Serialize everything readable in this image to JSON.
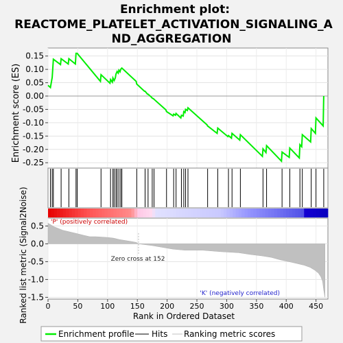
{
  "chart_data": {
    "type": "line",
    "title_lines": [
      "Enrichment plot:",
      "REACTOME_PLATELET_ACTIVATION_SIGNALING_A",
      "ND_AGGREGATION"
    ],
    "ylabel_top": "Enrichment score (ES)",
    "ylabel_bottom": "Ranked list metric (Signal2Noise)",
    "xlabel": "Rank in Ordered Dataset",
    "xlim": [
      0,
      470
    ],
    "es_ylim": [
      -0.27,
      0.18
    ],
    "metric_ylim": [
      -1.55,
      0.72
    ],
    "x_ticks": [
      0,
      50,
      100,
      150,
      200,
      250,
      300,
      350,
      400,
      450
    ],
    "es_ticks": [
      "0.15",
      "0.10",
      "0.05",
      "0.00",
      "-0.05",
      "-0.10",
      "-0.15",
      "-0.20",
      "-0.25"
    ],
    "es_tick_values": [
      0.15,
      0.1,
      0.05,
      0.0,
      -0.05,
      -0.1,
      -0.15,
      -0.2,
      -0.25
    ],
    "metric_ticks": [
      "0.5",
      "0.0",
      "-0.5",
      "-1.0",
      "-1.5"
    ],
    "metric_tick_values": [
      0.5,
      0.0,
      -0.5,
      -1.0,
      -1.5
    ],
    "zero_cross_label": "Zero cross at 152",
    "zero_cross": 152,
    "pos_label": "'P' (positively correlated)",
    "neg_label": "'K' (negatively correlated)",
    "legend": [
      "Enrichment profile",
      "Hits",
      "Ranking metric scores"
    ],
    "colors": {
      "es_line": "#00ee00",
      "hit": "#000000",
      "metric_fill": "#c0c0c0",
      "pos_text": "#cc0000",
      "neg_text": "#2222cc"
    },
    "hits": [
      4,
      7,
      9,
      22,
      35,
      47,
      49,
      89,
      105,
      109,
      111,
      114,
      116,
      119,
      122,
      124,
      149,
      163,
      168,
      175,
      178,
      199,
      211,
      215,
      224,
      228,
      231,
      235,
      268,
      285,
      303,
      309,
      323,
      361,
      367,
      393,
      406,
      423,
      427,
      442,
      450,
      463
    ],
    "es_x": [
      0,
      4,
      7,
      9,
      21,
      22,
      34,
      35,
      46,
      47,
      49,
      88,
      89,
      104,
      105,
      108,
      109,
      111,
      113,
      114,
      116,
      118,
      119,
      121,
      122,
      124,
      148,
      149,
      162,
      163,
      167,
      168,
      174,
      175,
      177,
      178,
      198,
      199,
      210,
      211,
      214,
      215,
      223,
      224,
      227,
      228,
      230,
      231,
      234,
      235,
      267,
      268,
      284,
      285,
      302,
      303,
      308,
      309,
      322,
      323,
      360,
      361,
      366,
      367,
      392,
      393,
      405,
      406,
      422,
      423,
      426,
      427,
      441,
      442,
      449,
      450,
      462,
      463
    ],
    "es_y": [
      0.04,
      0.032,
      0.07,
      0.138,
      0.118,
      0.14,
      0.12,
      0.14,
      0.12,
      0.16,
      0.16,
      0.055,
      0.08,
      0.048,
      0.062,
      0.052,
      0.068,
      0.058,
      0.068,
      0.082,
      0.092,
      0.086,
      0.097,
      0.091,
      0.1,
      0.105,
      0.055,
      0.045,
      0.018,
      0.018,
      0.007,
      0.007,
      -0.005,
      -0.008,
      -0.01,
      -0.012,
      -0.052,
      -0.058,
      -0.074,
      -0.068,
      -0.072,
      -0.065,
      -0.082,
      -0.072,
      -0.075,
      -0.058,
      -0.062,
      -0.05,
      -0.054,
      -0.044,
      -0.108,
      -0.112,
      -0.14,
      -0.12,
      -0.152,
      -0.148,
      -0.158,
      -0.14,
      -0.165,
      -0.145,
      -0.226,
      -0.198,
      -0.212,
      -0.186,
      -0.244,
      -0.21,
      -0.23,
      -0.195,
      -0.232,
      -0.182,
      -0.19,
      -0.145,
      -0.172,
      -0.122,
      -0.14,
      -0.082,
      -0.112,
      0.0
    ],
    "metric_x": [
      0,
      10,
      25,
      45,
      60,
      70,
      80,
      100,
      110,
      120,
      135,
      148,
      152,
      175,
      210,
      230,
      260,
      290,
      320,
      340,
      360,
      375,
      390,
      410,
      430,
      440,
      448,
      454,
      458,
      461,
      463,
      465
    ],
    "metric_y": [
      0.58,
      0.48,
      0.38,
      0.3,
      0.24,
      0.2,
      0.2,
      0.18,
      0.16,
      0.12,
      0.08,
      0.04,
      0.0,
      -0.05,
      -0.15,
      -0.18,
      -0.18,
      -0.22,
      -0.25,
      -0.3,
      -0.34,
      -0.38,
      -0.45,
      -0.52,
      -0.6,
      -0.66,
      -0.74,
      -0.82,
      -0.92,
      -1.05,
      -1.3,
      -1.5
    ]
  }
}
